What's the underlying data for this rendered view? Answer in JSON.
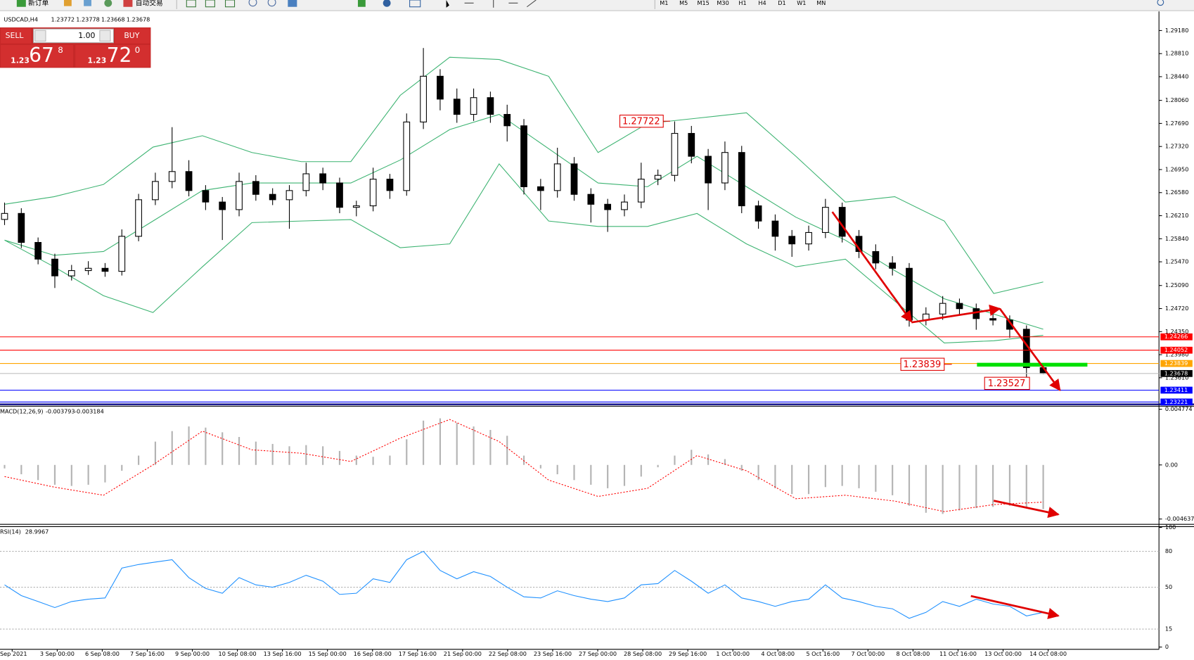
{
  "toolbar": {
    "new_order": "新订单",
    "auto_trading": "自动交易",
    "timeframes": [
      "M1",
      "M5",
      "M15",
      "M30",
      "H1",
      "H4",
      "D1",
      "W1",
      "MN"
    ]
  },
  "trade_panel": {
    "sell": "SELL",
    "buy": "BUY",
    "volume": "1.00",
    "sell_price": [
      "1.23",
      "67",
      "8"
    ],
    "buy_price": [
      "1.23",
      "72",
      "0"
    ]
  },
  "chart": {
    "type": "candlestick",
    "symbol": "USDCAD,H4",
    "quote": [
      1.23772,
      1.23778,
      1.23668,
      1.23678
    ],
    "ylim": [
      1.2319,
      1.2945
    ],
    "yticks": [
      {
        "value": 1.2918,
        "label": "1.29180"
      },
      {
        "value": 1.2881,
        "label": "1.28810"
      },
      {
        "value": 1.2844,
        "label": "1.28440"
      },
      {
        "value": 1.2806,
        "label": "1.28060"
      },
      {
        "value": 1.2769,
        "label": "1.27690"
      },
      {
        "value": 1.2732,
        "label": "1.27320"
      },
      {
        "value": 1.2695,
        "label": "1.26950"
      },
      {
        "value": 1.2658,
        "label": "1.26580"
      },
      {
        "value": 1.2621,
        "label": "1.26210"
      },
      {
        "value": 1.2584,
        "label": "1.25840"
      },
      {
        "value": 1.2547,
        "label": "1.25470"
      },
      {
        "value": 1.2509,
        "label": "1.25090"
      },
      {
        "value": 1.2472,
        "label": "1.24720"
      },
      {
        "value": 1.2435,
        "label": "1.24350"
      },
      {
        "value": 1.2398,
        "label": "1.23980"
      },
      {
        "value": 1.2361,
        "label": "1.23610"
      }
    ],
    "candles": [
      [
        1.2615,
        1.2642,
        1.2606,
        1.26246
      ],
      [
        1.26246,
        1.2633,
        1.2569,
        1.25781
      ],
      [
        1.25781,
        1.2586,
        1.2543,
        1.25513
      ],
      [
        1.25513,
        1.256,
        1.2505,
        1.25244
      ],
      [
        1.25244,
        1.2542,
        1.2517,
        1.25329
      ],
      [
        1.25329,
        1.2548,
        1.2526,
        1.25366
      ],
      [
        1.25366,
        1.2545,
        1.2523,
        1.25317
      ],
      [
        1.25317,
        1.2599,
        1.2525,
        1.25879
      ],
      [
        1.25879,
        1.2656,
        1.258,
        1.26466
      ],
      [
        1.26466,
        1.269,
        1.2638,
        1.26759
      ],
      [
        1.26759,
        1.2763,
        1.2665,
        1.26918
      ],
      [
        1.26918,
        1.271,
        1.2652,
        1.26613
      ],
      [
        1.26613,
        1.267,
        1.263,
        1.26429
      ],
      [
        1.26429,
        1.2651,
        1.2582,
        1.26307
      ],
      [
        1.26307,
        1.269,
        1.262,
        1.26759
      ],
      [
        1.26759,
        1.2686,
        1.2645,
        1.26552
      ],
      [
        1.26552,
        1.2665,
        1.2638,
        1.26466
      ],
      [
        1.26466,
        1.267,
        1.26,
        1.26613
      ],
      [
        1.26613,
        1.2706,
        1.2652,
        1.26882
      ],
      [
        1.26882,
        1.2698,
        1.2662,
        1.26735
      ],
      [
        1.26735,
        1.2682,
        1.2625,
        1.26344
      ],
      [
        1.26344,
        1.2645,
        1.262,
        1.26368
      ],
      [
        1.26368,
        1.2698,
        1.2628,
        1.26796
      ],
      [
        1.26796,
        1.2688,
        1.2648,
        1.26613
      ],
      [
        1.26613,
        1.2785,
        1.2653,
        1.27713
      ],
      [
        1.27713,
        1.289,
        1.276,
        1.28447
      ],
      [
        1.28447,
        1.2856,
        1.279,
        1.2808
      ],
      [
        1.2808,
        1.2825,
        1.277,
        1.27835
      ],
      [
        1.27835,
        1.2825,
        1.2773,
        1.28104
      ],
      [
        1.28104,
        1.282,
        1.277,
        1.27835
      ],
      [
        1.27835,
        1.2799,
        1.274,
        1.27652
      ],
      [
        1.27652,
        1.2776,
        1.2655,
        1.26674
      ],
      [
        1.26674,
        1.268,
        1.263,
        1.26613
      ],
      [
        1.26613,
        1.273,
        1.265,
        1.27041
      ],
      [
        1.27041,
        1.2715,
        1.2645,
        1.26552
      ],
      [
        1.26552,
        1.2665,
        1.261,
        1.26393
      ],
      [
        1.26393,
        1.2648,
        1.2595,
        1.26307
      ],
      [
        1.26307,
        1.2655,
        1.262,
        1.26429
      ],
      [
        1.26429,
        1.2706,
        1.2633,
        1.26796
      ],
      [
        1.26796,
        1.2695,
        1.267,
        1.26857
      ],
      [
        1.26857,
        1.27722,
        1.2676,
        1.2753
      ],
      [
        1.2753,
        1.2765,
        1.2705,
        1.27163
      ],
      [
        1.27163,
        1.2728,
        1.263,
        1.26735
      ],
      [
        1.26735,
        1.274,
        1.2662,
        1.27224
      ],
      [
        1.27224,
        1.2733,
        1.2625,
        1.26368
      ],
      [
        1.26368,
        1.2645,
        1.26,
        1.26124
      ],
      [
        1.26124,
        1.2623,
        1.2565,
        1.25879
      ],
      [
        1.25879,
        1.2598,
        1.2555,
        1.25757
      ],
      [
        1.25757,
        1.2605,
        1.2565,
        1.2594
      ],
      [
        1.2594,
        1.2648,
        1.2585,
        1.26344
      ],
      [
        1.26344,
        1.2642,
        1.2578,
        1.25879
      ],
      [
        1.25879,
        1.2598,
        1.2553,
        1.25635
      ],
      [
        1.25635,
        1.2575,
        1.2535,
        1.25451
      ],
      [
        1.25451,
        1.2556,
        1.2525,
        1.25366
      ],
      [
        1.25366,
        1.2545,
        1.2443,
        1.24535
      ],
      [
        1.24535,
        1.2474,
        1.2445,
        1.24632
      ],
      [
        1.24632,
        1.2492,
        1.2454,
        1.24803
      ],
      [
        1.24803,
        1.2488,
        1.2462,
        1.24718
      ],
      [
        1.24718,
        1.248,
        1.2438,
        1.24559
      ],
      [
        1.24559,
        1.2472,
        1.2445,
        1.24535
      ],
      [
        1.24535,
        1.2461,
        1.2425,
        1.24388
      ],
      [
        1.24388,
        1.2445,
        1.23527,
        1.23772
      ],
      [
        1.23772,
        1.23778,
        1.23668,
        1.23678
      ]
    ],
    "bollinger": {
      "color": "#3cb371",
      "upper": [
        1.26393,
        1.26515,
        1.26711,
        1.2731,
        1.27493,
        1.27224,
        1.27077,
        1.27077,
        1.28141,
        1.28752,
        1.28715,
        1.28446,
        1.27224,
        1.27689,
        1.27774,
        1.2786,
        1.27163,
        1.26429,
        1.26515,
        1.26124,
        1.24962,
        1.25146
      ],
      "middle": [
        1.25818,
        1.25574,
        1.25635,
        1.26124,
        1.26613,
        1.26735,
        1.26735,
        1.26735,
        1.27102,
        1.27591,
        1.27835,
        1.27285,
        1.26735,
        1.26674,
        1.27163,
        1.26674,
        1.26185,
        1.25818,
        1.25329,
        1.24877,
        1.24632,
        1.24388
      ],
      "lower": [
        1.25818,
        1.2539,
        1.24926,
        1.24657,
        1.2539,
        1.26099,
        1.26124,
        1.26148,
        1.25696,
        1.25757,
        1.27041,
        1.26124,
        1.26038,
        1.26038,
        1.26246,
        1.25757,
        1.2539,
        1.25512,
        1.2484,
        1.24168,
        1.24204,
        1.2429
      ]
    },
    "levels": [
      {
        "value": 1.24266,
        "color": "#ff0000"
      },
      {
        "value": 1.24052,
        "color": "#ff0000"
      },
      {
        "value": 1.23839,
        "color": "#ffa500"
      },
      {
        "value": 1.23678,
        "color": "#c0c0c0",
        "label_color": "#000000"
      },
      {
        "value": 1.23411,
        "color": "#0000ff"
      },
      {
        "value": 1.23221,
        "color": "#0000ff"
      }
    ],
    "annotations": [
      1.27722,
      1.23839,
      1.23527
    ],
    "x_labels": [
      "Sep 2021",
      "3 Sep 00:00",
      "6 Sep 08:00",
      "7 Sep 16:00",
      "9 Sep 00:00",
      "10 Sep 08:00",
      "13 Sep 16:00",
      "15 Sep 00:00",
      "16 Sep 08:00",
      "17 Sep 16:00",
      "21 Sep 00:00",
      "22 Sep 08:00",
      "23 Sep 16:00",
      "27 Sep 00:00",
      "28 Sep 08:00",
      "29 Sep 16:00",
      "1 Oct 00:00",
      "4 Oct 08:00",
      "5 Oct 16:00",
      "7 Oct 00:00",
      "8 Oct 08:00",
      "11 Oct 16:00",
      "13 Oct 00:00",
      "14 Oct 08:00"
    ],
    "macd": {
      "name": "MACD(12,26,9)",
      "values": [
        -0.003793,
        -0.003184
      ],
      "ylim": [
        -0.004637,
        0.004774
      ],
      "yticks": [
        0.004774,
        {
          "value": 0,
          "label": "0.00"
        },
        -0.004637
      ],
      "histogram": [
        -0.0003,
        -0.0008,
        -0.0013,
        -0.0017,
        -0.0018,
        -0.0017,
        -0.0015,
        -0.0005,
        0.0008,
        0.002,
        0.0029,
        0.0033,
        0.0032,
        0.0028,
        0.0024,
        0.002,
        0.0018,
        0.0016,
        0.0017,
        0.0016,
        0.0012,
        0.0008,
        0.0007,
        0.0008,
        0.0022,
        0.0038,
        0.004,
        0.0036,
        0.0033,
        0.003,
        0.0025,
        0.0008,
        -0.0003,
        -0.0008,
        -0.0013,
        -0.0017,
        -0.002,
        -0.0018,
        -0.001,
        -0.0002,
        0.0008,
        0.0013,
        0.0009,
        0.0005,
        -0.0005,
        -0.0013,
        -0.002,
        -0.0025,
        -0.0025,
        -0.0019,
        -0.0018,
        -0.002,
        -0.0023,
        -0.0026,
        -0.0035,
        -0.0041,
        -0.0042,
        -0.0039,
        -0.0037,
        -0.0036,
        -0.0035,
        -0.0037,
        -0.003793
      ],
      "signal": [
        -0.001,
        -0.0019,
        -0.0026,
        0,
        0.0029,
        0.0013,
        0.001,
        0.0003,
        0.0023,
        0.0039,
        0.002,
        -0.0013,
        -0.0027,
        -0.002,
        0.0008,
        -0.0005,
        -0.0029,
        -0.0026,
        -0.0031,
        -0.004,
        -0.0034,
        -0.003184
      ],
      "histogram_color": "#b4b4b4",
      "signal_color": "#ff0000"
    },
    "rsi": {
      "name": "RSI(14)",
      "value": 28.9967,
      "ylim": [
        0,
        100
      ],
      "yticks": [
        100,
        80,
        50,
        15,
        0
      ],
      "color": "#1e90ff",
      "values": [
        52,
        43,
        38,
        33,
        38,
        40,
        41,
        66,
        69,
        71,
        73,
        58,
        49,
        45,
        58,
        52,
        50,
        54,
        60,
        55,
        44,
        45,
        57,
        54,
        73,
        80,
        64,
        57,
        63,
        59,
        50,
        42,
        41,
        47,
        43,
        40,
        38,
        41,
        52,
        53,
        64,
        55,
        45,
        52,
        41,
        38,
        34,
        38,
        40,
        52,
        41,
        38,
        34,
        32,
        24,
        29,
        38,
        34,
        40,
        36,
        34,
        26,
        28.9967
      ]
    }
  }
}
